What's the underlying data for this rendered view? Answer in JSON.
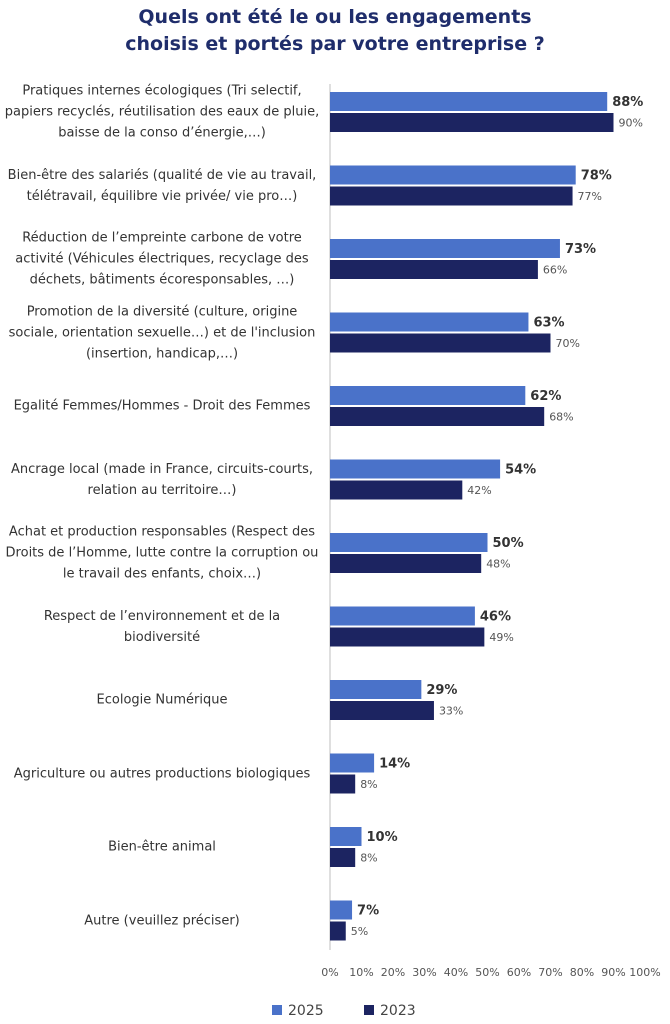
{
  "chart_data": {
    "type": "bar",
    "orientation": "horizontal",
    "title": "Quels ont été le ou les engagements choisis et portés par votre entreprise ?",
    "categories": [
      "Pratiques internes écologiques (Tri selectif, papiers recyclés, réutilisation des eaux de pluie, baisse de la conso d’énergie,…)",
      "Bien-être des salariés (qualité de vie au travail, télétravail, équilibre vie privée/ vie pro…)",
      "Réduction de l’empreinte carbone de votre activité (Véhicules électriques, recyclage des déchets, bâtiments écoresponsables, …)",
      "Promotion de la diversité (culture, origine sociale, orientation sexuelle…) et de l'inclusion (insertion, handicap,…)",
      "Egalité Femmes/Hommes - Droit des Femmes",
      "Ancrage local (made in France, circuits-courts, relation au territoire…)",
      "Achat et production responsables (Respect des Droits de l’Homme, lutte contre la corruption ou le travail des enfants, choix…)",
      "Respect de l’environnement et de la biodiversité",
      "Ecologie Numérique",
      "Agriculture ou autres productions biologiques",
      "Bien-être animal",
      "Autre (veuillez préciser)"
    ],
    "series": [
      {
        "name": "2025",
        "color": "#4a72c9",
        "values": [
          88,
          78,
          73,
          63,
          62,
          54,
          50,
          46,
          29,
          14,
          10,
          7
        ],
        "value_labels": [
          "88%",
          "78%",
          "73%",
          "63%",
          "62%",
          "54%",
          "50%",
          "46%",
          "29%",
          "14%",
          "10%",
          "7%"
        ]
      },
      {
        "name": "2023",
        "color": "#1c2461",
        "values": [
          90,
          77,
          66,
          70,
          68,
          42,
          48,
          49,
          33,
          8,
          8,
          5
        ],
        "value_labels": [
          "90%",
          "77%",
          "66%",
          "70%",
          "68%",
          "42%",
          "48%",
          "49%",
          "33%",
          "8%",
          "8%",
          "5%"
        ]
      }
    ],
    "xlim": [
      0,
      100
    ],
    "xticks": [
      {
        "value": 0,
        "label": "0%"
      },
      {
        "value": 10,
        "label": "10%"
      },
      {
        "value": 20,
        "label": "20%"
      },
      {
        "value": 30,
        "label": "30%"
      },
      {
        "value": 40,
        "label": "40%"
      },
      {
        "value": 50,
        "label": "50%"
      },
      {
        "value": 60,
        "label": "60%"
      },
      {
        "value": 70,
        "label": "70%"
      },
      {
        "value": 80,
        "label": "80%"
      },
      {
        "value": 90,
        "label": "90%"
      },
      {
        "value": 100,
        "label": "100%"
      }
    ],
    "grid": false,
    "legend": "bottom"
  }
}
